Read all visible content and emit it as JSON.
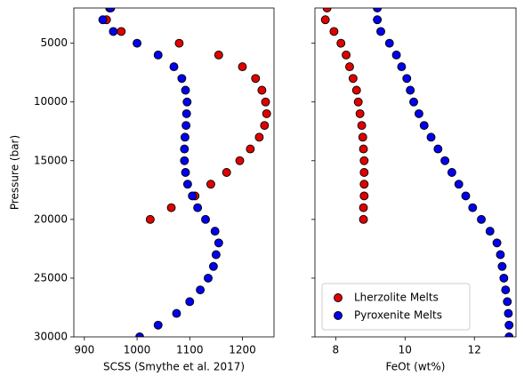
{
  "chart_data": [
    {
      "type": "scatter",
      "xlabel": "SCSS (Smythe et al. 2017)",
      "ylabel": "Pressure (bar)",
      "xlim": [
        880,
        1260
      ],
      "ylim": [
        30000,
        2000
      ],
      "xticks": [
        900,
        1000,
        1100,
        1200
      ],
      "yticks": [
        5000,
        10000,
        15000,
        20000,
        25000,
        30000
      ],
      "series": [
        {
          "color": "#e00000",
          "x": [
            948,
            942,
            970,
            1080,
            1155,
            1200,
            1225,
            1237,
            1244,
            1246,
            1242,
            1232,
            1215,
            1195,
            1170,
            1140,
            1110,
            1065,
            1025
          ],
          "y": [
            2000,
            3000,
            4000,
            5000,
            6000,
            7000,
            8000,
            9000,
            10000,
            11000,
            12000,
            13000,
            14000,
            15000,
            16000,
            17000,
            18000,
            19000,
            20000
          ]
        },
        {
          "color": "#0000ee",
          "x": [
            950,
            935,
            955,
            1000,
            1040,
            1070,
            1085,
            1092,
            1095,
            1094,
            1093,
            1091,
            1090,
            1090,
            1092,
            1096,
            1105,
            1115,
            1130,
            1148,
            1155,
            1150,
            1145,
            1135,
            1120,
            1100,
            1075,
            1040,
            1005
          ],
          "y": [
            2000,
            3000,
            4000,
            5000,
            6000,
            7000,
            8000,
            9000,
            10000,
            11000,
            12000,
            13000,
            14000,
            15000,
            16000,
            17000,
            18000,
            19000,
            20000,
            21000,
            22000,
            23000,
            24000,
            25000,
            26000,
            27000,
            28000,
            29000,
            30000
          ]
        }
      ]
    },
    {
      "type": "scatter",
      "sharey": true,
      "xlabel": "FeOt (wt%)",
      "xlim": [
        7.4,
        13.2
      ],
      "ylim": [
        30000,
        2000
      ],
      "xticks": [
        8,
        10,
        12
      ],
      "yticks": [
        5000,
        10000,
        15000,
        20000,
        25000,
        30000
      ],
      "legend": "lower left",
      "series": [
        {
          "name": "Lherzolite Melts",
          "color": "#e00000",
          "x": [
            7.75,
            7.7,
            7.95,
            8.15,
            8.3,
            8.4,
            8.5,
            8.6,
            8.65,
            8.7,
            8.75,
            8.78,
            8.8,
            8.82,
            8.82,
            8.82,
            8.82,
            8.8,
            8.8
          ],
          "y": [
            2000,
            3000,
            4000,
            5000,
            6000,
            7000,
            8000,
            9000,
            10000,
            11000,
            12000,
            13000,
            14000,
            15000,
            16000,
            17000,
            18000,
            19000,
            20000
          ]
        },
        {
          "name": "Pyroxenite Melts",
          "color": "#0000ee",
          "x": [
            9.2,
            9.2,
            9.3,
            9.55,
            9.75,
            9.9,
            10.05,
            10.15,
            10.25,
            10.4,
            10.55,
            10.75,
            10.95,
            11.15,
            11.35,
            11.55,
            11.75,
            11.95,
            12.2,
            12.45,
            12.65,
            12.75,
            12.8,
            12.85,
            12.9,
            12.95,
            12.98,
            13.0,
            13.0
          ],
          "y": [
            2000,
            3000,
            4000,
            5000,
            6000,
            7000,
            8000,
            9000,
            10000,
            11000,
            12000,
            13000,
            14000,
            15000,
            16000,
            17000,
            18000,
            19000,
            20000,
            21000,
            22000,
            23000,
            24000,
            25000,
            26000,
            27000,
            28000,
            29000,
            30000
          ]
        }
      ]
    }
  ]
}
